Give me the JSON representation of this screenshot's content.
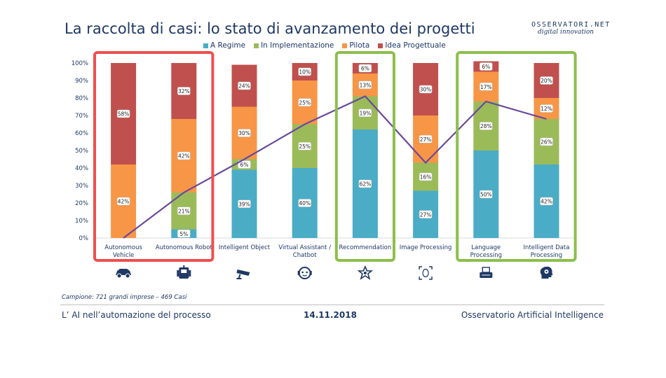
{
  "page": {
    "title": "La raccolta di casi: lo stato di avanzamento dei progetti",
    "logo_line1": "OSSERVATORI.NET",
    "logo_line2": "digital innovation",
    "sample_note": "Campione: 721 grandi imprese – 469 Casi",
    "footer_left": "L’ AI nell’automazione del processo",
    "footer_date": "14.11.2018",
    "footer_right": "Osservatorio Artificial Intelligence"
  },
  "colors": {
    "a_regime": "#4bacc6",
    "in_implementazione": "#9bbb59",
    "pilota": "#f79646",
    "idea": "#c0504d",
    "line": "#6a4a9c",
    "red_box": "#ef4f4f",
    "green_box": "#8cbf4b"
  },
  "chart_data": {
    "type": "bar",
    "stacked": true,
    "categories": [
      "Autonomous Vehicle",
      "Autonomous Robot",
      "Intelligent Object",
      "Virtual Assistant / Chatbot",
      "Recommendation",
      "Image Processing",
      "Language Processing",
      "Intelligent Data Processing"
    ],
    "y_ticks": [
      "0%",
      "10%",
      "20%",
      "30%",
      "40%",
      "50%",
      "60%",
      "70%",
      "80%",
      "90%",
      "100%"
    ],
    "ylim": [
      0,
      100
    ],
    "legend_position": "top",
    "series": [
      {
        "name": "A Regime",
        "color_key": "a_regime",
        "values": [
          0,
          5,
          39,
          40,
          62,
          27,
          50,
          42
        ],
        "labels": [
          "",
          "5%",
          "39%",
          "40%",
          "62%",
          "27%",
          "50%",
          "42%"
        ]
      },
      {
        "name": "In Implementazione",
        "color_key": "in_implementazione",
        "values": [
          0,
          21,
          6,
          25,
          19,
          16,
          28,
          26
        ],
        "labels": [
          "",
          "21%",
          "6%",
          "25%",
          "19%",
          "16%",
          "28%",
          "26%"
        ]
      },
      {
        "name": "Pilota",
        "color_key": "pilota",
        "values": [
          42,
          42,
          30,
          25,
          13,
          27,
          17,
          12
        ],
        "labels": [
          "42%",
          "42%",
          "30%",
          "25%",
          "13%",
          "27%",
          "17%",
          "12%"
        ]
      },
      {
        "name": "Idea Progettuale",
        "color_key": "idea",
        "values": [
          58,
          32,
          24,
          10,
          6,
          30,
          6,
          20
        ],
        "labels": [
          "58%",
          "32%",
          "24%",
          "10%",
          "6%",
          "30%",
          "6%",
          "20%"
        ]
      }
    ],
    "trend_line": [
      0,
      26,
      45,
      65,
      81,
      43,
      78,
      68
    ],
    "highlight_boxes": [
      {
        "color_key": "red_box",
        "from": 0,
        "to": 1
      },
      {
        "color_key": "green_box",
        "from": 4,
        "to": 4
      },
      {
        "color_key": "green_box",
        "from": 6,
        "to": 7
      }
    ],
    "icons": [
      "car-icon",
      "robot-icon",
      "cctv-camera-icon",
      "chatbot-face-icon",
      "star-badge-icon",
      "face-scan-icon",
      "typewriter-icon",
      "head-gear-icon"
    ]
  }
}
